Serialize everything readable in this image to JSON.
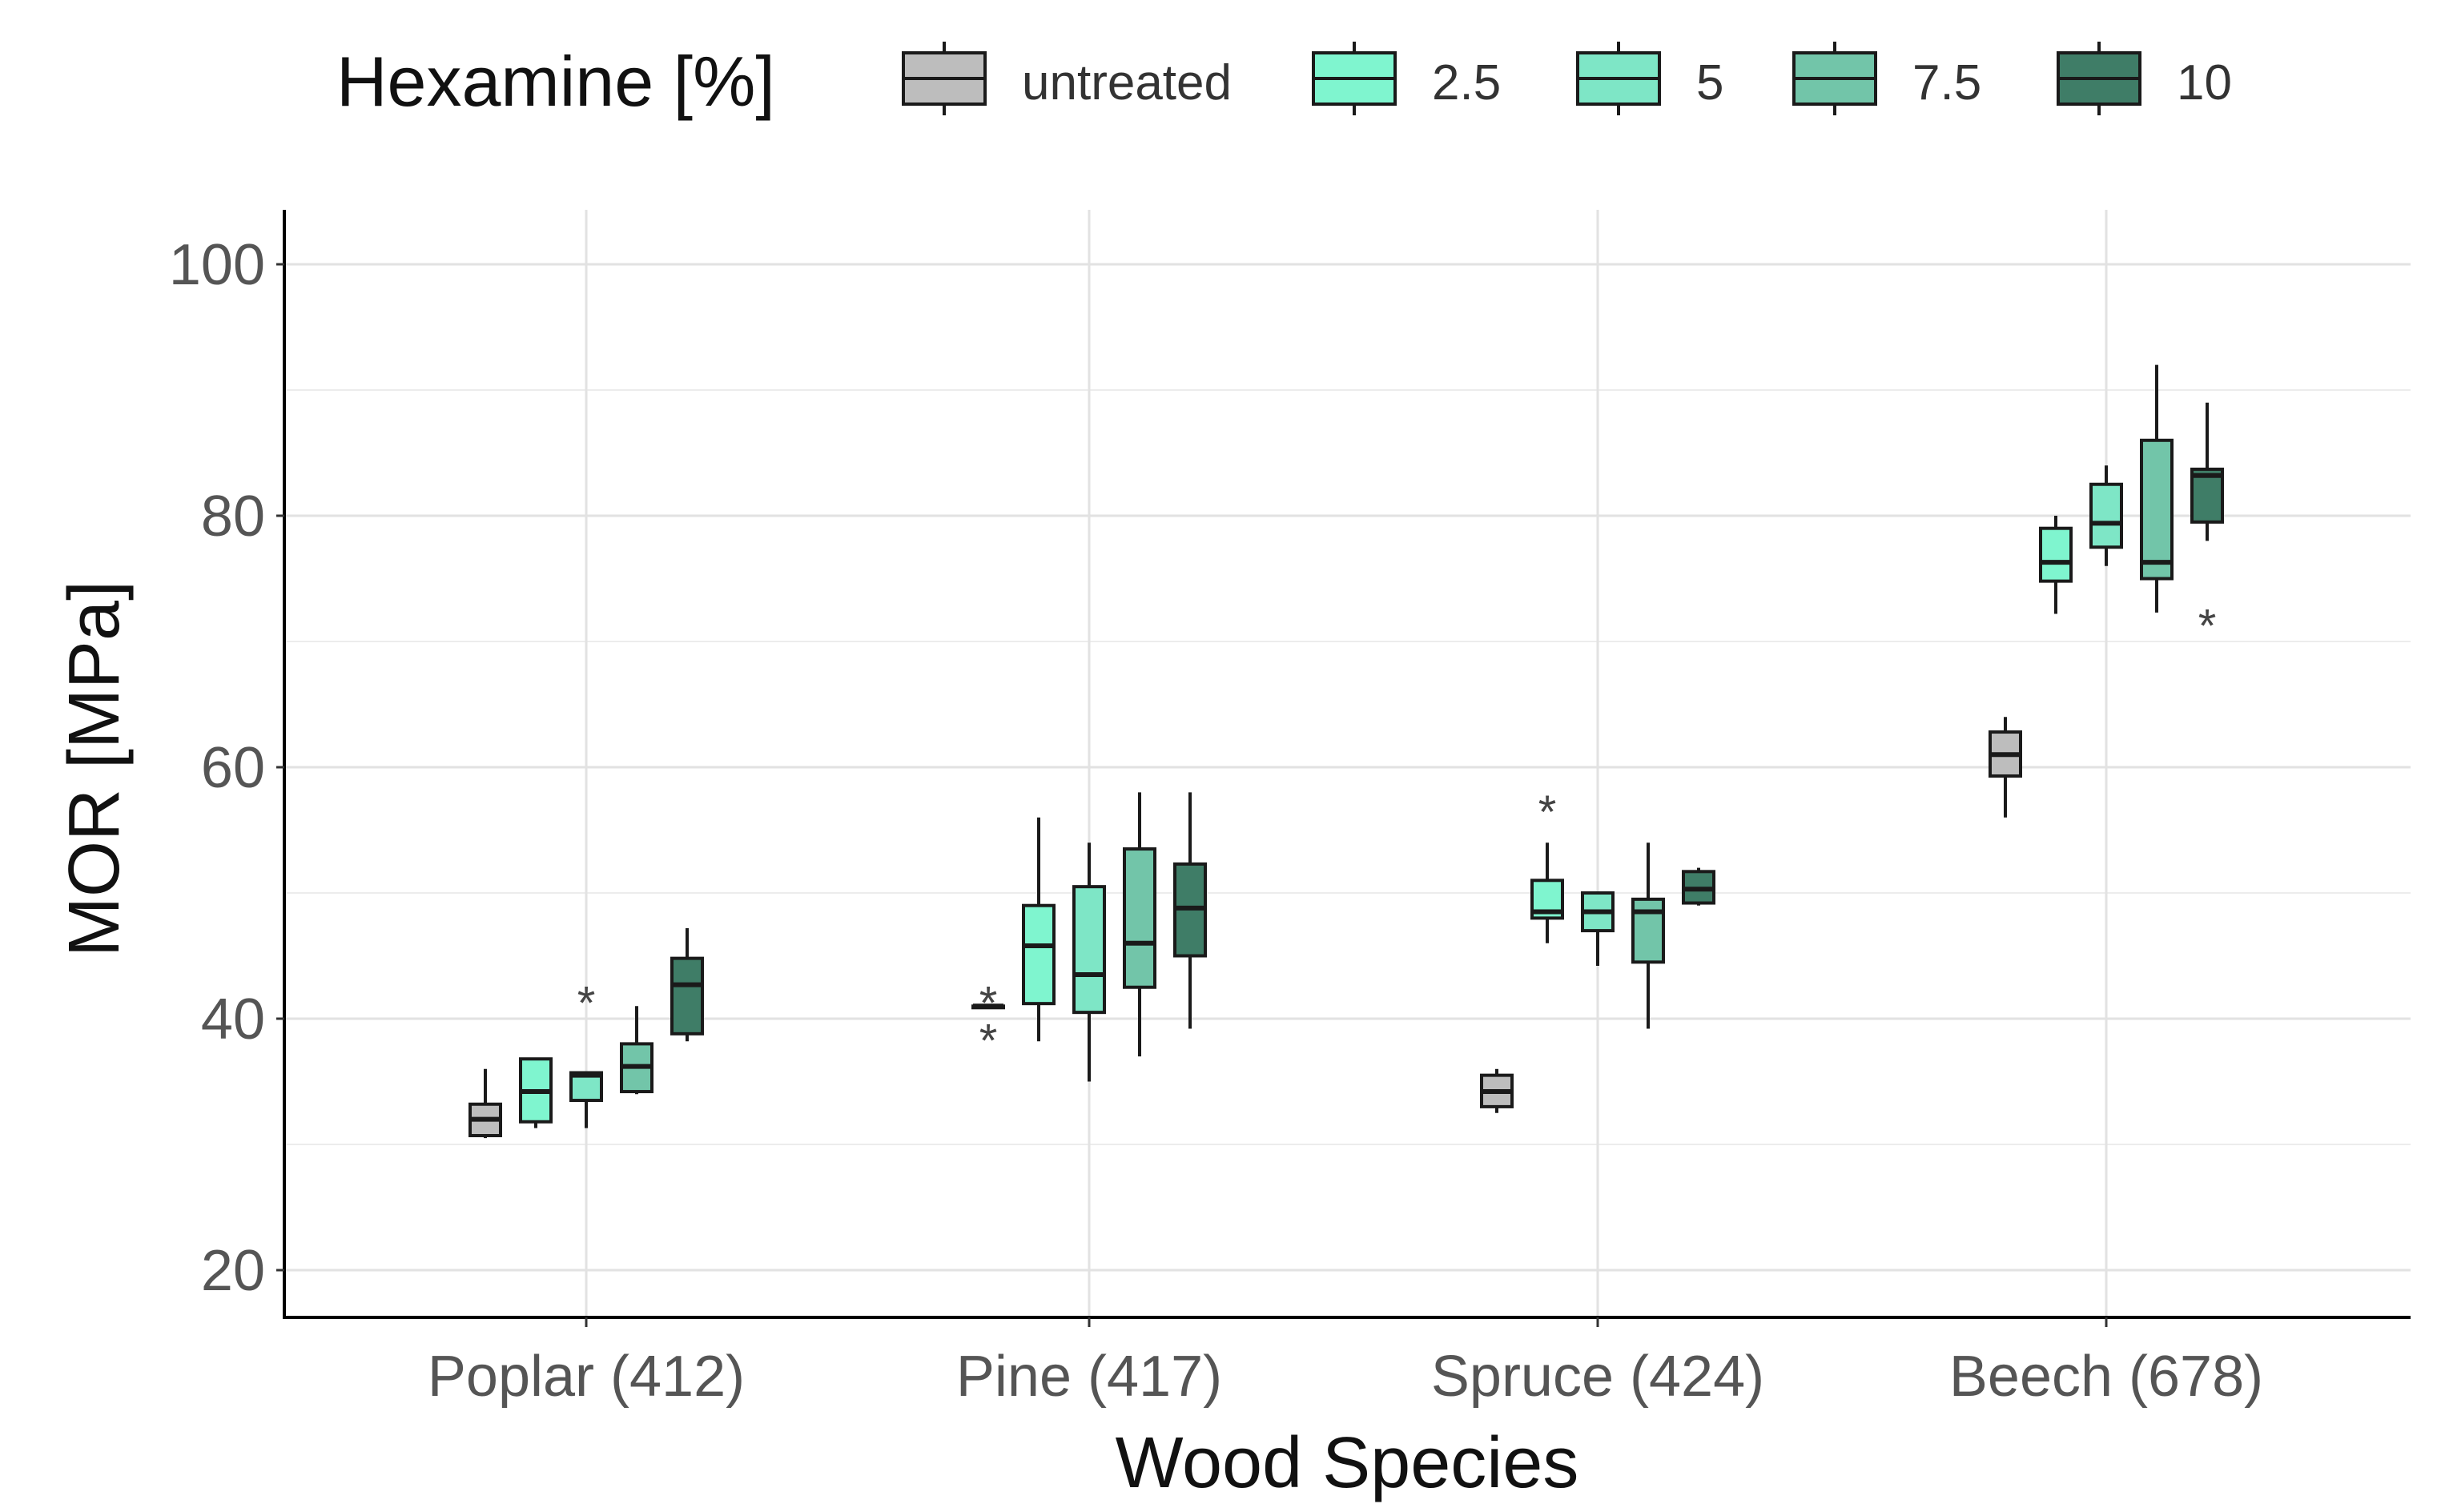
{
  "chart_data": {
    "type": "boxplot",
    "title": "",
    "xlabel": "Wood Species",
    "ylabel": "MOR [MPa]",
    "ylim": [
      16.5,
      104.5
    ],
    "yticks": [
      20,
      40,
      60,
      80,
      100
    ],
    "grid": true,
    "legend": {
      "title": "Hexamine [%]",
      "position": "top",
      "entries": [
        "untreated",
        "2.5",
        "5",
        "7.5",
        "10"
      ]
    },
    "categories": [
      "Poplar (412)",
      "Pine (417)",
      "Spruce (424)",
      "Beech (678)"
    ],
    "series": [
      {
        "name": "untreated",
        "color": "#bdbdbd",
        "boxes": [
          {
            "min": 30.5,
            "q1": 30.7,
            "median": 32.0,
            "q3": 33.2,
            "max": 36.0,
            "outliers": []
          },
          {
            "min": 41.0,
            "q1": 41.0,
            "median": 41.0,
            "q3": 41.0,
            "max": 41.0,
            "outliers": [
              42.0,
              39.0
            ]
          },
          {
            "min": 32.5,
            "q1": 33.0,
            "median": 34.2,
            "q3": 35.5,
            "max": 36.0,
            "outliers": []
          },
          {
            "min": 56.0,
            "q1": 59.3,
            "median": 61.0,
            "q3": 62.8,
            "max": 64.0,
            "outliers": []
          }
        ]
      },
      {
        "name": "2.5",
        "color": "#7ff5cf",
        "boxes": [
          {
            "min": 31.3,
            "q1": 31.8,
            "median": 34.2,
            "q3": 36.8,
            "max": 36.8,
            "outliers": []
          },
          {
            "min": 38.2,
            "q1": 41.2,
            "median": 45.8,
            "q3": 49.0,
            "max": 56.0,
            "outliers": []
          },
          {
            "min": 46.0,
            "q1": 48.0,
            "median": 48.5,
            "q3": 51.0,
            "max": 54.0,
            "outliers": [
              57.2
            ]
          },
          {
            "min": 72.2,
            "q1": 74.8,
            "median": 76.3,
            "q3": 79.0,
            "max": 80.0,
            "outliers": []
          }
        ]
      },
      {
        "name": "5",
        "color": "#7ee6c6",
        "boxes": [
          {
            "min": 31.3,
            "q1": 33.5,
            "median": 35.5,
            "q3": 35.7,
            "max": 35.7,
            "outliers": [
              42.0
            ]
          },
          {
            "min": 35.0,
            "q1": 40.5,
            "median": 43.5,
            "q3": 50.5,
            "max": 54.0,
            "outliers": []
          },
          {
            "min": 44.2,
            "q1": 47.0,
            "median": 48.5,
            "q3": 50.0,
            "max": 50.0,
            "outliers": []
          },
          {
            "min": 76.0,
            "q1": 77.5,
            "median": 79.4,
            "q3": 82.5,
            "max": 84.0,
            "outliers": []
          }
        ]
      },
      {
        "name": "7.5",
        "color": "#72c5a9",
        "boxes": [
          {
            "min": 34.0,
            "q1": 34.2,
            "median": 36.2,
            "q3": 38.0,
            "max": 41.0,
            "outliers": []
          },
          {
            "min": 37.0,
            "q1": 42.5,
            "median": 46.0,
            "q3": 53.5,
            "max": 58.0,
            "outliers": []
          },
          {
            "min": 39.2,
            "q1": 44.5,
            "median": 48.5,
            "q3": 49.5,
            "max": 54.0,
            "outliers": []
          },
          {
            "min": 72.3,
            "q1": 75.0,
            "median": 76.3,
            "q3": 86.0,
            "max": 92.0,
            "outliers": []
          }
        ]
      },
      {
        "name": "10",
        "color": "#3f7d67",
        "boxes": [
          {
            "min": 38.2,
            "q1": 38.8,
            "median": 42.7,
            "q3": 44.8,
            "max": 47.2,
            "outliers": []
          },
          {
            "min": 39.2,
            "q1": 45.0,
            "median": 48.8,
            "q3": 52.3,
            "max": 58.0,
            "outliers": []
          },
          {
            "min": 49.0,
            "q1": 49.2,
            "median": 50.3,
            "q3": 51.7,
            "max": 52.0,
            "outliers": []
          },
          {
            "min": 78.0,
            "q1": 79.5,
            "median": 83.2,
            "q3": 83.7,
            "max": 89.0,
            "outliers": [
              72.0
            ]
          }
        ]
      }
    ]
  }
}
